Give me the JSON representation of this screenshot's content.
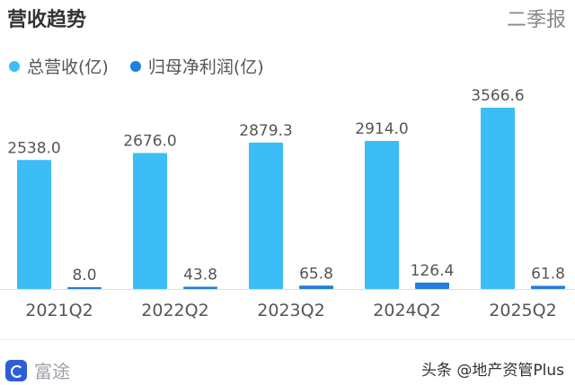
{
  "header": {
    "title": "营收趋势",
    "period": "二季报"
  },
  "legend": [
    {
      "label": "总营收(亿)",
      "color": "#3dbdf5"
    },
    {
      "label": "归母净利润(亿)",
      "color": "#1e7fdc"
    }
  ],
  "chart_data": {
    "type": "bar",
    "categories": [
      "2021Q2",
      "2022Q2",
      "2023Q2",
      "2024Q2",
      "2025Q2"
    ],
    "series": [
      {
        "name": "总营收(亿)",
        "color": "#3dbdf5",
        "values": [
          2538.0,
          2676.0,
          2879.3,
          2914.0,
          3566.6
        ],
        "labels": [
          "2538.0",
          "2676.0",
          "2879.3",
          "2914.0",
          "3566.6"
        ]
      },
      {
        "name": "归母净利润(亿)",
        "color": "#1e7fdc",
        "values": [
          8.0,
          43.8,
          65.8,
          126.4,
          61.8
        ],
        "labels": [
          "8.0",
          "43.8",
          "65.8",
          "126.4",
          "61.8"
        ]
      }
    ],
    "title": "营收趋势",
    "xlabel": "",
    "ylabel": "",
    "ylim": [
      0,
      3566.6
    ],
    "grid": false,
    "legend_position": "top-left"
  },
  "footer": {
    "brand": "富途",
    "watermark": "头条 @地产资管Plus"
  }
}
